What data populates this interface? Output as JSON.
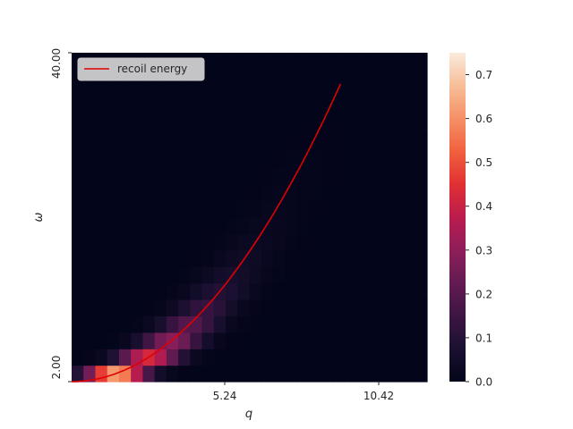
{
  "chart_data": {
    "type": "heatmap",
    "xlabel": "q",
    "ylabel": "ω",
    "xlim": [
      0,
      15.6
    ],
    "ylim": [
      2,
      40
    ],
    "xticks": [
      {
        "value": 5.24,
        "label": "5.24"
      },
      {
        "value": 10.42,
        "label": "10.42"
      }
    ],
    "yticks": [
      {
        "value": 2,
        "label": "2.00"
      },
      {
        "value": 40,
        "label": "40.00"
      }
    ],
    "colorbar": {
      "range": [
        0,
        0.75
      ],
      "ticks": [
        {
          "value": 0.0,
          "label": "0.0"
        },
        {
          "value": 0.1,
          "label": "0.1"
        },
        {
          "value": 0.2,
          "label": "0.2"
        },
        {
          "value": 0.3,
          "label": "0.3"
        },
        {
          "value": 0.4,
          "label": "0.4"
        },
        {
          "value": 0.5,
          "label": "0.5"
        },
        {
          "value": 0.6,
          "label": "0.6"
        },
        {
          "value": 0.7,
          "label": "0.7"
        }
      ]
    },
    "colormap": "rocket",
    "grid": {
      "cols": 30,
      "rows": 20
    },
    "intensity_model": {
      "peak": 0.75,
      "decay_per_omega": 0.2,
      "width_cells": 2.4
    },
    "line": {
      "name": "recoil energy",
      "color": "#e00000",
      "formula": "omega = 2 + 0.247 * q^2",
      "q_range": [
        0,
        11.8
      ]
    },
    "legend": {
      "position": "top-left",
      "entries": [
        "recoil energy"
      ]
    }
  }
}
